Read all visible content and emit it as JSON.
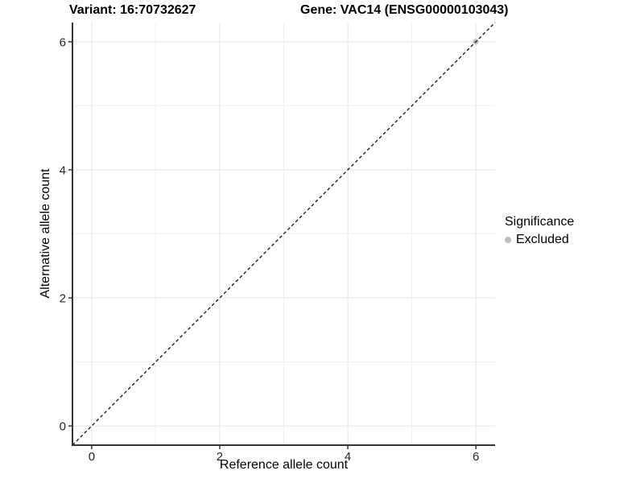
{
  "title": {
    "variant": "Variant: 16:70732627",
    "gene": "Gene: VAC14 (ENSG00000103043)"
  },
  "axes": {
    "x_label": "Reference allele count",
    "y_label": "Alternative allele count"
  },
  "legend": {
    "title": "Significance",
    "items": [
      {
        "label": "Excluded",
        "color": "#bdbdbd"
      }
    ]
  },
  "chart_data": {
    "type": "scatter",
    "title": "Variant: 16:70732627 | Gene: VAC14 (ENSG00000103043)",
    "xlabel": "Reference allele count",
    "ylabel": "Alternative allele count",
    "xlim": [
      -0.3,
      6.3
    ],
    "ylim": [
      -0.3,
      6.3
    ],
    "x_ticks": [
      0,
      2,
      4,
      6
    ],
    "y_ticks": [
      0,
      2,
      4,
      6
    ],
    "x_minor_ticks": [
      1,
      3,
      5
    ],
    "y_minor_ticks": [
      1,
      3,
      5
    ],
    "grid": true,
    "legend_position": "right",
    "series": [
      {
        "name": "Excluded",
        "color": "#bdbdbd",
        "points": [
          {
            "x": 6,
            "y": 6
          }
        ]
      }
    ],
    "reference_line": {
      "slope": 1,
      "intercept": 0,
      "style": "dashed",
      "color": "#111111"
    },
    "style": {
      "grid_major_color": "#e3e3e3",
      "grid_minor_color": "#f0f0f0",
      "axis_line_color": "#333333",
      "tick_color": "#333333",
      "tick_label_color": "#262626",
      "point_radius": 3.5
    }
  }
}
